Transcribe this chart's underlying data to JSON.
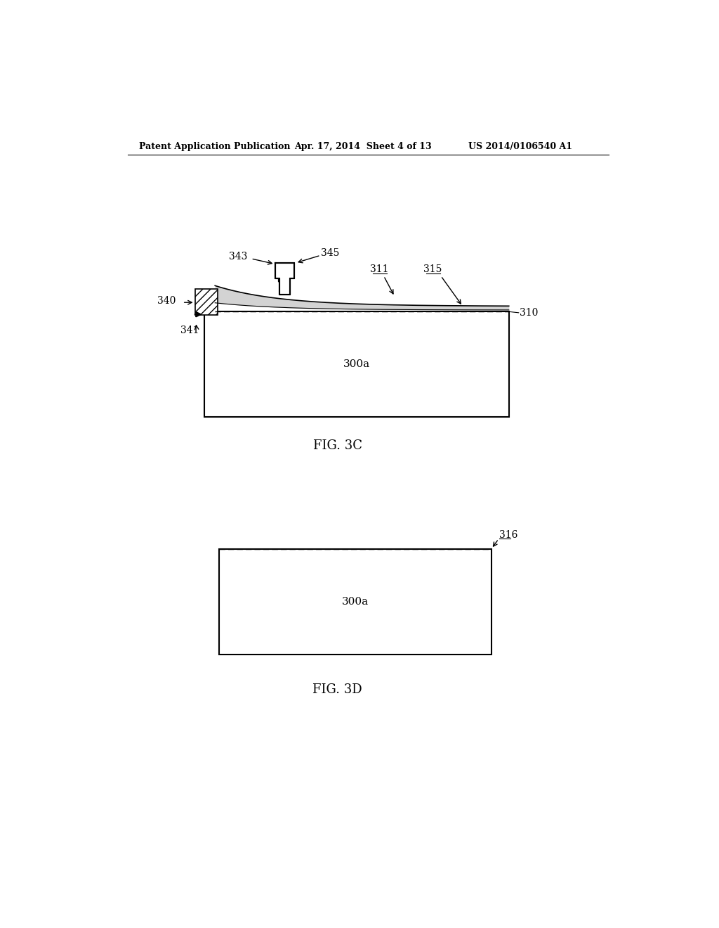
{
  "bg_color": "#ffffff",
  "header_left": "Patent Application Publication",
  "header_mid": "Apr. 17, 2014  Sheet 4 of 13",
  "header_right": "US 2014/0106540 A1",
  "fig3c_label": "FIG. 3C",
  "fig3d_label": "FIG. 3D",
  "fig3c_300a": "300a",
  "fig3d_300a": "300a",
  "label_310": "310",
  "label_311": "311",
  "label_315": "315",
  "label_316": "316",
  "label_340": "340",
  "label_341": "341",
  "label_343": "343",
  "label_345": "345"
}
